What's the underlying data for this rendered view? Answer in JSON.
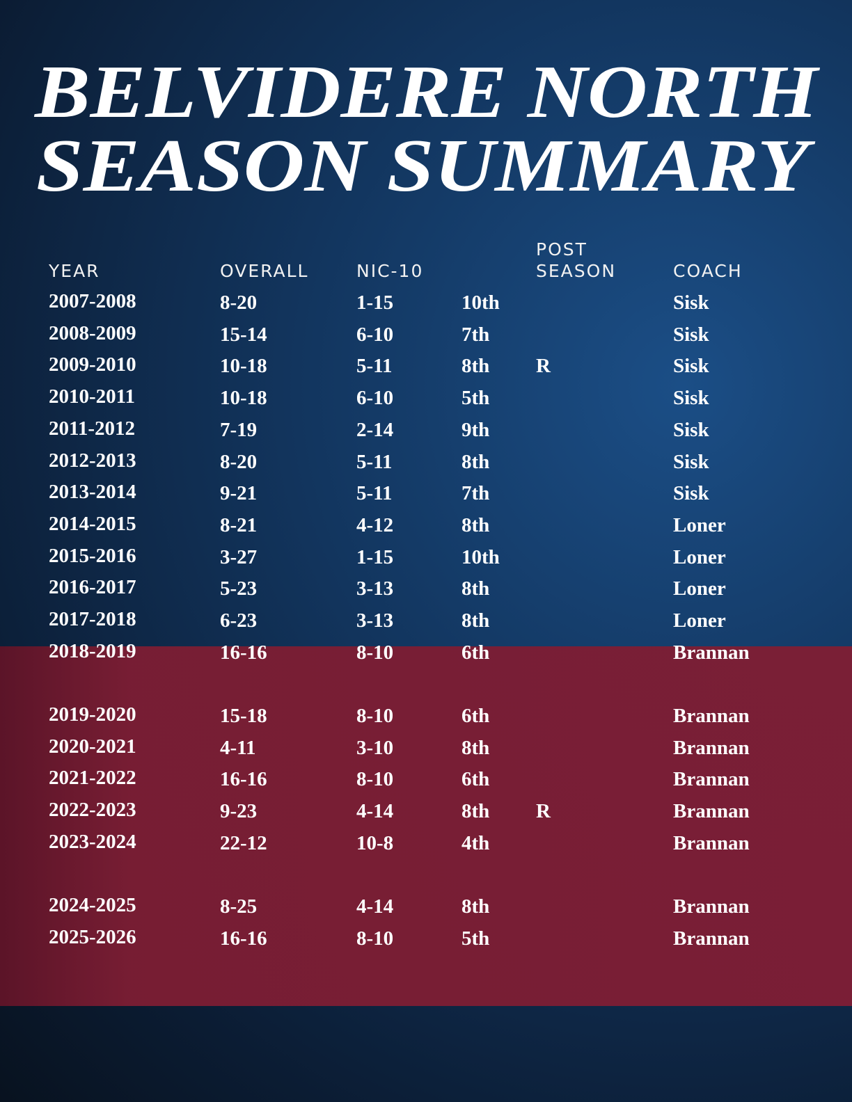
{
  "title": [
    "BELVIDERE NORTH",
    "SEASON SUMMARY"
  ],
  "headers": {
    "year": [
      "YEAR"
    ],
    "overall": [
      "OVERALL"
    ],
    "nic10": [
      "NIC-10"
    ],
    "post": [
      "POST",
      "SEASON"
    ],
    "coach": [
      "COACH"
    ]
  },
  "rows": [
    {
      "year": "2007-2008",
      "overall": "8-20",
      "nic10": "1-15",
      "place": "10th",
      "coach": "Sisk"
    },
    {
      "year": "2008-2009",
      "overall": "15-14",
      "nic10": "6-10",
      "place": "7th",
      "coach": "Sisk"
    },
    {
      "year": "2009-2010",
      "overall": "10-18",
      "nic10": "5-11",
      "place": "8th",
      "post": "R",
      "coach": "Sisk"
    },
    {
      "year": "2010-2011",
      "overall": "10-18",
      "nic10": "6-10",
      "place": "5th",
      "coach": "Sisk"
    },
    {
      "year": "2011-2012",
      "overall": "7-19",
      "nic10": "2-14",
      "place": "9th",
      "coach": "Sisk"
    },
    {
      "year": "2012-2013",
      "overall": "8-20",
      "nic10": "5-11",
      "place": "8th",
      "coach": "Sisk"
    },
    {
      "year": "2013-2014",
      "overall": "9-21",
      "nic10": "5-11",
      "place": "7th",
      "coach": "Sisk"
    },
    {
      "year": "2014-2015",
      "overall": "8-21",
      "nic10": "4-12",
      "place": "8th",
      "coach": "Loner"
    },
    {
      "year": "2015-2016",
      "overall": "3-27",
      "nic10": "1-15",
      "place": "10th",
      "coach": "Loner"
    },
    {
      "year": "2016-2017",
      "overall": "5-23",
      "nic10": "3-13",
      "place": "8th",
      "coach": "Loner"
    },
    {
      "year": "2017-2018",
      "overall": "6-23",
      "nic10": "3-13",
      "place": "8th",
      "coach": "Loner"
    },
    {
      "year": "2018-2019",
      "overall": "16-16",
      "nic10": "8-10",
      "place": "6th",
      "coach": "Brannan"
    },
    {
      "year": "2019-2020",
      "overall": "15-18",
      "nic10": "8-10",
      "place": "6th",
      "coach": "Brannan"
    },
    {
      "year": "2020-2021",
      "overall": "4-11",
      "nic10": "3-10",
      "place": "8th",
      "coach": "Brannan"
    },
    {
      "year": "2021-2022",
      "overall": "16-16",
      "nic10": "8-10",
      "place": "6th",
      "coach": "Brannan"
    },
    {
      "year": "2022-2023",
      "overall": "9-23",
      "nic10": "4-14",
      "place": "8th",
      "post": "R",
      "coach": "Brannan"
    },
    {
      "year": "2023-2024",
      "overall": "22-12",
      "nic10": "10-8",
      "place": "4th",
      "coach": "Brannan"
    },
    {
      "year": "2024-2025",
      "overall": "8-25",
      "nic10": "4-14",
      "place": "8th",
      "coach": "Brannan"
    },
    {
      "year": "2025-2026",
      "overall": "16-16",
      "nic10": "8-10",
      "place": "5th",
      "coach": "Brannan"
    }
  ]
}
